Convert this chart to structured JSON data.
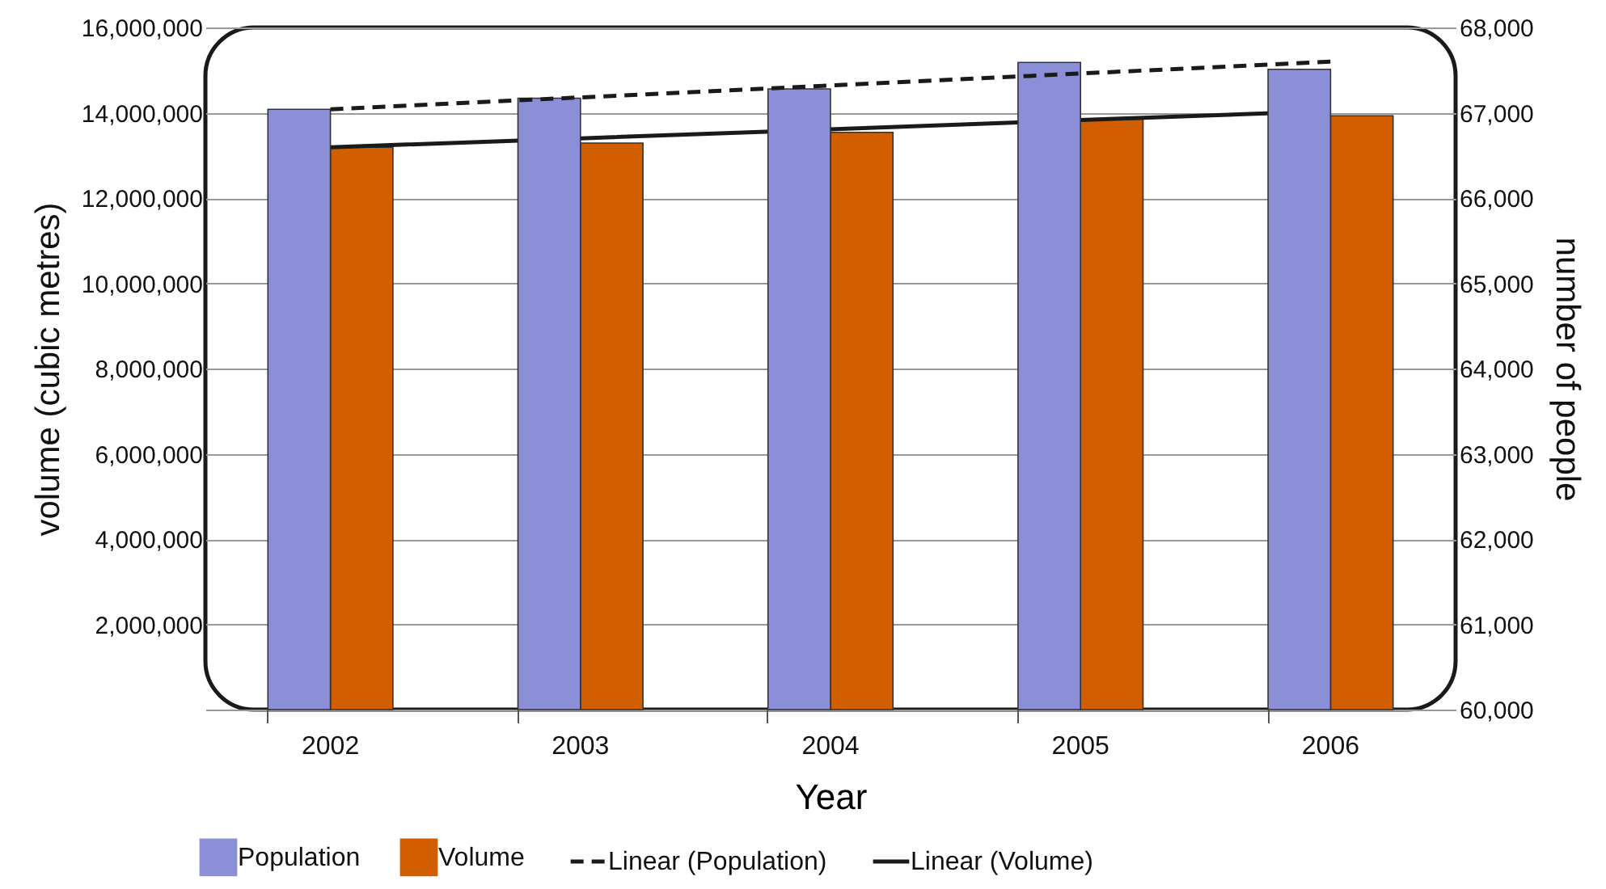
{
  "chart_data": {
    "type": "bar",
    "xlabel": "Year",
    "ylabel": "volume (cubic metres)",
    "y2label": "number of people",
    "categories": [
      "2002",
      "2003",
      "2004",
      "2005",
      "2006"
    ],
    "series": [
      {
        "name": "Population",
        "axis": "y2",
        "color": "#8b8fd8",
        "values": [
          67040,
          67170,
          67280,
          67590,
          67510
        ]
      },
      {
        "name": "Volume",
        "color": "#d15f00",
        "values": [
          13190000,
          13290000,
          13540000,
          13850000,
          13930000
        ]
      },
      {
        "name": "Linear (Population)",
        "type": "line",
        "axis": "y2",
        "color": "#1a1a1a",
        "line_style": "dashed",
        "values": [
          67040,
          67180,
          67320,
          67460,
          67600
        ]
      },
      {
        "name": "Linear (Volume)",
        "type": "line",
        "color": "#1a1a1a",
        "line_style": "solid",
        "values": [
          13190000,
          13400000,
          13610000,
          13830000,
          14040000
        ]
      }
    ],
    "ylim": [
      0,
      16000000
    ],
    "yticks": [
      {
        "value": 0,
        "label": null
      },
      {
        "value": 2000000,
        "label": "2,000,000"
      },
      {
        "value": 4000000,
        "label": "4,000,000"
      },
      {
        "value": 6000000,
        "label": "6,000,000"
      },
      {
        "value": 8000000,
        "label": "8,000,000"
      },
      {
        "value": 10000000,
        "label": "10,000,000"
      },
      {
        "value": 12000000,
        "label": "12,000,000"
      },
      {
        "value": 14000000,
        "label": "14,000,000"
      },
      {
        "value": 16000000,
        "label": "16,000,000"
      }
    ],
    "y2lim": [
      60000,
      68000
    ],
    "y2ticks": [
      {
        "value": 60000,
        "label": "60,000"
      },
      {
        "value": 61000,
        "label": "61,000"
      },
      {
        "value": 62000,
        "label": "62,000"
      },
      {
        "value": 63000,
        "label": "63,000"
      },
      {
        "value": 64000,
        "label": "64,000"
      },
      {
        "value": 65000,
        "label": "65,000"
      },
      {
        "value": 66000,
        "label": "66,000"
      },
      {
        "value": 67000,
        "label": "67,000"
      },
      {
        "value": 68000,
        "label": "68,000"
      }
    ],
    "grid": "y",
    "legend": "bottom",
    "marker": "none"
  }
}
